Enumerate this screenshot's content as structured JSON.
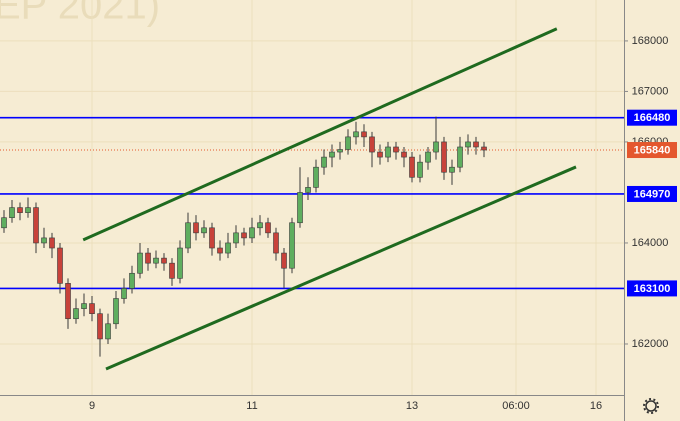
{
  "chart_data": {
    "type": "candlestick",
    "watermark": "EP 2021)",
    "categories": [
      null,
      null,
      null,
      null,
      null,
      null,
      null,
      null,
      null,
      null,
      null,
      "9",
      null,
      null,
      null,
      null,
      null,
      null,
      null,
      null,
      null,
      null,
      null,
      null,
      null,
      null,
      null,
      null,
      null,
      null,
      null,
      "11",
      null,
      null,
      null,
      null,
      null,
      null,
      null,
      null,
      null,
      null,
      null,
      null,
      null,
      null,
      null,
      null,
      null,
      null,
      null,
      "13",
      null,
      null,
      null,
      null,
      null,
      null,
      null,
      null,
      null,
      null,
      null,
      null,
      "06:00",
      null,
      null,
      null,
      null,
      null,
      null,
      null,
      null,
      null,
      "16"
    ],
    "open": [
      164300,
      164500,
      164700,
      164600,
      164700,
      164000,
      164100,
      163900,
      163200,
      162500,
      162700,
      162800,
      162600,
      162100,
      162400,
      162900,
      163100,
      163400,
      163800,
      163600,
      163700,
      163600,
      163300,
      163900,
      164400,
      164200,
      164300,
      163900,
      163800,
      164000,
      164200,
      164100,
      164300,
      164400,
      164200,
      163800,
      163500,
      164400,
      165000,
      165100,
      165500,
      165700,
      165800,
      165850,
      166100,
      166200,
      166100,
      165800,
      165700,
      165900,
      165800,
      165700,
      165300,
      165600,
      165800,
      166000,
      165400,
      165500,
      165900,
      166000,
      165900,
      null,
      null,
      null,
      null,
      null,
      null,
      null,
      null,
      null,
      null,
      null,
      null,
      null,
      null
    ],
    "high": [
      164650,
      164850,
      164800,
      164900,
      164800,
      164300,
      164200,
      164000,
      163300,
      162900,
      163000,
      162950,
      162700,
      162600,
      163050,
      163300,
      163550,
      164000,
      163900,
      163850,
      163800,
      163700,
      164050,
      164600,
      164550,
      164450,
      164400,
      164050,
      164200,
      164350,
      164300,
      164500,
      164550,
      164500,
      164300,
      163900,
      164500,
      165500,
      165300,
      165650,
      165850,
      165950,
      166000,
      166250,
      166400,
      166350,
      166200,
      165950,
      166000,
      166000,
      165900,
      165800,
      165750,
      165900,
      166500,
      166100,
      165650,
      166100,
      166150,
      166100,
      166000,
      null,
      null,
      null,
      null,
      null,
      null,
      null,
      null,
      null,
      null,
      null,
      null,
      null,
      null
    ],
    "low": [
      164200,
      164400,
      164450,
      164500,
      163800,
      163900,
      163700,
      163000,
      162300,
      162400,
      162550,
      162450,
      161750,
      162000,
      162300,
      162800,
      163000,
      163300,
      163450,
      163500,
      163450,
      163150,
      163200,
      163800,
      164050,
      164100,
      163750,
      163650,
      163700,
      163900,
      163950,
      164000,
      164150,
      164100,
      163650,
      163100,
      163400,
      164300,
      164850,
      165000,
      165350,
      165500,
      165650,
      165750,
      165950,
      165900,
      165500,
      165550,
      165600,
      165650,
      165500,
      165200,
      165200,
      165450,
      165650,
      165250,
      165150,
      165400,
      165750,
      165750,
      165700,
      null,
      null,
      null,
      null,
      null,
      null,
      null,
      null,
      null,
      null,
      null,
      null,
      null,
      null
    ],
    "close": [
      164500,
      164700,
      164600,
      164700,
      164000,
      164100,
      163900,
      163200,
      162500,
      162700,
      162800,
      162600,
      162100,
      162400,
      162900,
      163100,
      163400,
      163800,
      163600,
      163700,
      163600,
      163300,
      163900,
      164400,
      164200,
      164300,
      163900,
      163800,
      164000,
      164200,
      164100,
      164300,
      164400,
      164200,
      163800,
      163500,
      164400,
      165000,
      165100,
      165500,
      165700,
      165800,
      165850,
      166100,
      166200,
      166100,
      165800,
      165700,
      165900,
      165800,
      165700,
      165300,
      165600,
      165800,
      166000,
      165400,
      165500,
      165900,
      166000,
      165900,
      165840,
      null,
      null,
      null,
      null,
      null,
      null,
      null,
      null,
      null,
      null,
      null,
      null,
      null,
      null
    ],
    "up_color": "#5fae5f",
    "down_color": "#c8423a",
    "ylim": [
      160990,
      168810
    ],
    "yticks": [
      162000,
      164000,
      166000,
      167000,
      168000
    ],
    "grid": true,
    "levels": [
      {
        "value": 166480,
        "color": "#0000ff"
      },
      {
        "value": 164970,
        "color": "#0000ff"
      },
      {
        "value": 163100,
        "color": "#0000ff"
      }
    ],
    "last_price": {
      "value": 165840,
      "color": "#e4572e"
    },
    "trend_lines": [
      {
        "x": [
          9.9,
          69.1
        ],
        "y": [
          164060,
          168240
        ],
        "color": "#1f6a1f"
      },
      {
        "x": [
          12.75,
          71.5
        ],
        "y": [
          161505,
          165505
        ],
        "color": "#1f6a1f"
      }
    ]
  }
}
